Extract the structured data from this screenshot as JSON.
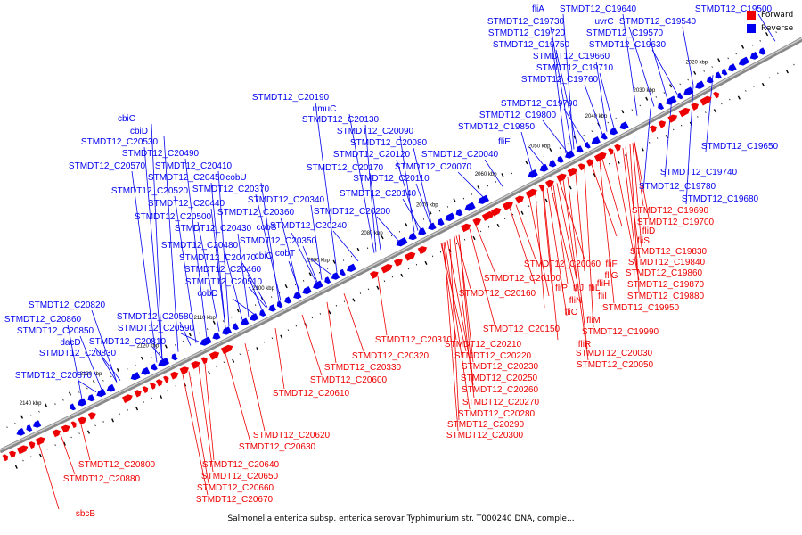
{
  "caption": "Salmonella enterica subsp. enterica serovar Typhimurium str. T000240 DNA, comple...",
  "legend": [
    {
      "label": "Forward",
      "color": "#ee0000"
    },
    {
      "label": "Reverse",
      "color": "#0000ee"
    }
  ],
  "colors": {
    "forward": "#ee0000",
    "reverse": "#0000ee",
    "backbone": "#888888"
  },
  "kbp_ticks": [
    "2020 kbp",
    "2030 kbp",
    "2040 kbp",
    "2050 kbp",
    "2060 kbp",
    "2070 kbp",
    "2080 kbp",
    "2090 kbp",
    "2100 kbp",
    "2110 kbp",
    "2120 kbp",
    "2130 kbp",
    "2140 kbp"
  ],
  "reverse_labels": [
    "fliA",
    "STMDT12_C19640",
    "STMDT12_C19500",
    "STMDT12_C19730",
    "uvrC",
    "STMDT12_C19540",
    "STMDT12_C19720",
    "STMDT12_C19570",
    "STMDT12_C19750",
    "STMDT12_C19630",
    "STMDT12_C19660",
    "STMDT12_C19710",
    "STMDT12_C19760",
    "STMDT12_C19790",
    "STMDT12_C19800",
    "STMDT12_C19850",
    "fliE",
    "STMDT12_C20040",
    "STMDT12_C20190",
    "umuC",
    "STMDT12_C20130",
    "STMDT12_C20090",
    "STMDT12_C20080",
    "STMDT12_C20120",
    "STMDT12_C20070",
    "STMDT12_C20170",
    "STMDT12_C20110",
    "STMDT12_C20140",
    "STMDT12_C20200",
    "STMDT12_C20240",
    "cbiC",
    "cbiD",
    "STMDT12_C20530",
    "STMDT12_C20490",
    "STMDT12_C20570",
    "STMDT12_C20410",
    "STMDT12_C20450",
    "cobU",
    "STMDT12_C20520",
    "STMDT12_C20370",
    "STMDT12_C20340",
    "STMDT12_C20440",
    "STMDT12_C20360",
    "STMDT12_C20500",
    "cobS",
    "STMDT12_C20430",
    "STMDT12_C20350",
    "STMDT12_C20480",
    "cobT",
    "STMDT12_C20470",
    "cbiO",
    "STMDT12_C20460",
    "STMDT12_C20510",
    "cobD",
    "STMDT12_C20820",
    "STMDT12_C20580",
    "STMDT12_C20860",
    "STMDT12_C20590",
    "STMDT12_C20850",
    "dacD",
    "STMDT12_C20810",
    "STMDT12_C20830",
    "STMDT12_C20870",
    "STMDT12_C19650",
    "STMDT12_C19740",
    "STMDT12_C19780",
    "STMDT12_C19680"
  ],
  "forward_labels": [
    "STMDT12_C19690",
    "STMDT12_C19700",
    "fliD",
    "fliS",
    "STMDT12_C19830",
    "STMDT12_C19840",
    "STMDT12_C20060",
    "fliF",
    "fliG",
    "STMDT12_C19860",
    "STMDT12_C20100",
    "fliP",
    "fliJ",
    "fliL",
    "fliH",
    "STMDT12_C19870",
    "STMDT12_C19880",
    "STMDT12_C20160",
    "fliN",
    "fliI",
    "fliO",
    "STMDT12_C19950",
    "fliM",
    "STMDT12_C20150",
    "STMDT12_C19990",
    "fliR",
    "STMDT12_C20030",
    "STMDT12_C20050",
    "STMDT12_C20310",
    "STMDT12_C20210",
    "STMDT12_C20320",
    "STMDT12_C20220",
    "STMDT12_C20330",
    "STMDT12_C20230",
    "STMDT12_C20600",
    "STMDT12_C20250",
    "STMDT12_C20610",
    "STMDT12_C20260",
    "STMDT12_C20270",
    "STMDT12_C20280",
    "STMDT12_C20290",
    "STMDT12_C20300",
    "STMDT12_C20620",
    "STMDT12_C20630",
    "STMDT12_C20640",
    "STMDT12_C20650",
    "STMDT12_C20660",
    "STMDT12_C20670",
    "STMDT12_C20800",
    "STMDT12_C20880",
    "sbcB"
  ]
}
